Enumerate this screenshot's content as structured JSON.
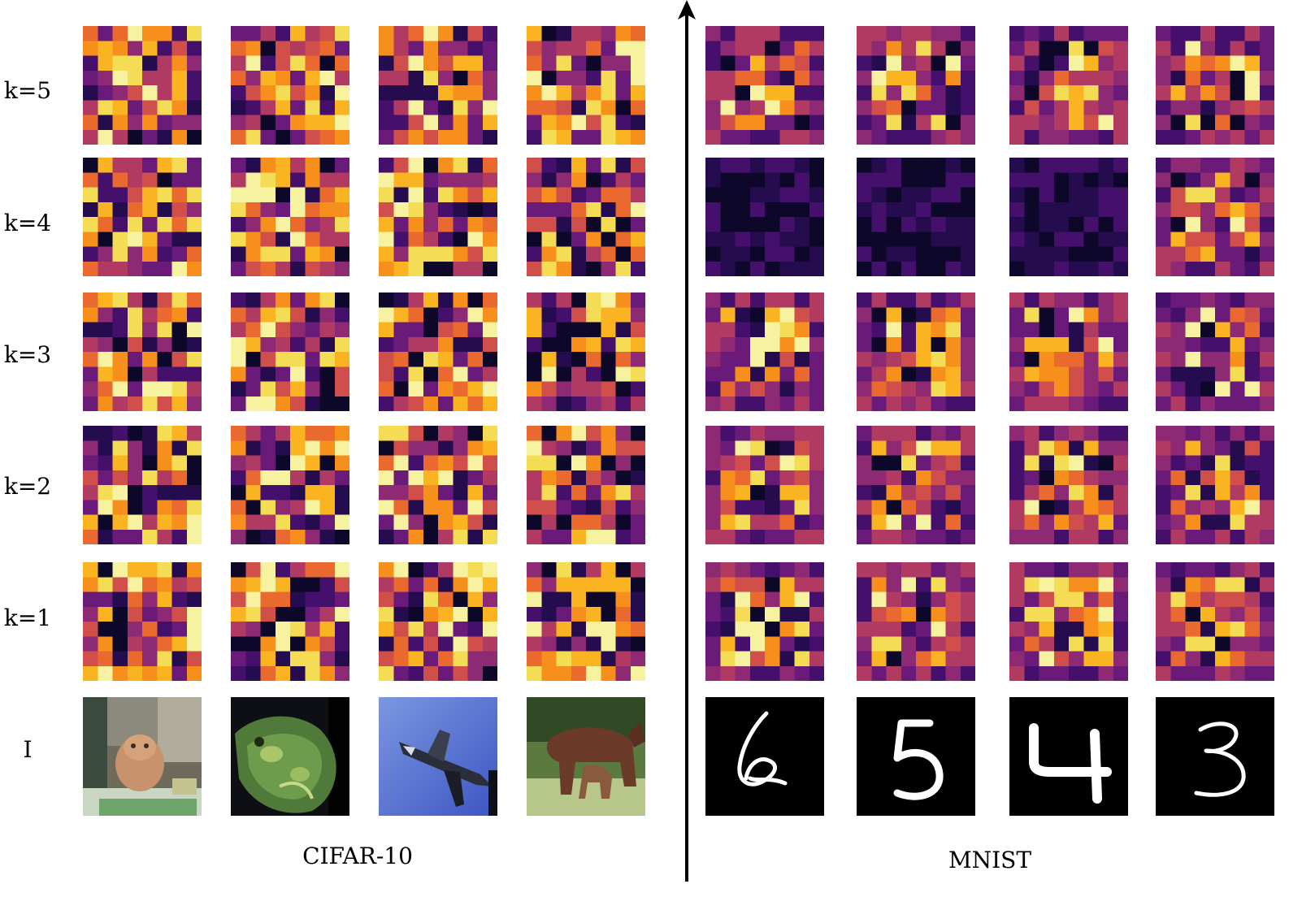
{
  "figure": {
    "row_labels": [
      "k=5",
      "k=4",
      "k=3",
      "k=2",
      "k=1",
      "I"
    ],
    "panels": [
      {
        "id": "cifar",
        "caption": "CIFAR-10",
        "inputs": [
          "hamster",
          "frog",
          "airplane",
          "horse"
        ]
      },
      {
        "id": "mnist",
        "caption": "MNIST",
        "inputs": [
          "6",
          "5",
          "4",
          "3"
        ]
      }
    ],
    "heatmap_grid_size": 8,
    "colormap": "inferno",
    "colors": {
      "inferno": [
        "#0d0829",
        "#240c4f",
        "#45106b",
        "#6a1a78",
        "#8e2a73",
        "#b13a62",
        "#d14f4a",
        "#e9692e",
        "#f78f1c",
        "#fbb421",
        "#f4dd55",
        "#f7f2a0"
      ],
      "axis": "#000000",
      "mnist_background": "#000000",
      "mnist_stroke": "#ffffff"
    }
  }
}
